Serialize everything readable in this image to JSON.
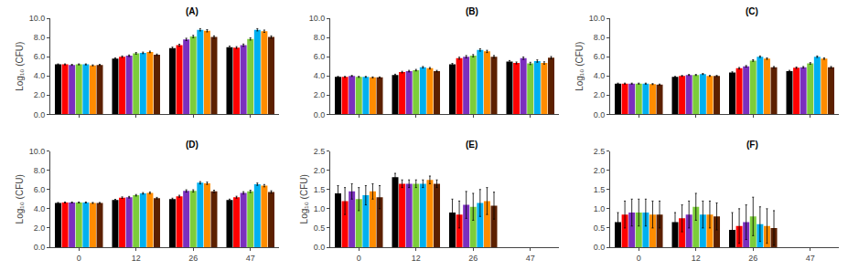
{
  "chart_data": [
    {
      "type": "bar",
      "title": "(A)",
      "ylabel": "Log₁₀ (CFU)",
      "categories": [
        0,
        12,
        26,
        47
      ],
      "series": [
        {
          "color": "#000000",
          "values": [
            5.2,
            5.8,
            6.9,
            7.0
          ],
          "errors": [
            0.05,
            0.08,
            0.1,
            0.1
          ]
        },
        {
          "color": "#ff0000",
          "values": [
            5.2,
            6.0,
            7.2,
            6.95
          ],
          "errors": [
            0.05,
            0.08,
            0.1,
            0.1
          ]
        },
        {
          "color": "#7b2fbe",
          "values": [
            5.15,
            6.1,
            7.8,
            7.2
          ],
          "errors": [
            0.05,
            0.08,
            0.12,
            0.12
          ]
        },
        {
          "color": "#7ccd3a",
          "values": [
            5.2,
            6.35,
            8.1,
            7.85
          ],
          "errors": [
            0.05,
            0.08,
            0.12,
            0.12
          ]
        },
        {
          "color": "#00b0f0",
          "values": [
            5.2,
            6.4,
            8.8,
            8.8
          ],
          "errors": [
            0.05,
            0.08,
            0.12,
            0.12
          ]
        },
        {
          "color": "#ff8c00",
          "values": [
            5.1,
            6.5,
            8.7,
            8.65
          ],
          "errors": [
            0.05,
            0.08,
            0.12,
            0.12
          ]
        },
        {
          "color": "#5c2000",
          "values": [
            5.15,
            6.2,
            8.05,
            8.05
          ],
          "errors": [
            0.05,
            0.08,
            0.12,
            0.12
          ]
        }
      ],
      "ylim": [
        0.0,
        10.0
      ],
      "yticks": [
        {
          "value": 0.0,
          "label": "0.0"
        },
        {
          "value": 2.0,
          "label": "2.0"
        },
        {
          "value": 4.0,
          "label": "4.0"
        },
        {
          "value": 6.0,
          "label": "6.0"
        },
        {
          "value": 8.0,
          "label": "8.0"
        },
        {
          "value": 10.0,
          "label": "10.0"
        }
      ],
      "grid": false,
      "tick_labels": "y"
    },
    {
      "type": "bar",
      "title": "(B)",
      "categories": [
        0,
        12,
        26,
        47
      ],
      "series": [
        {
          "color": "#000000",
          "values": [
            3.9,
            4.1,
            5.2,
            5.5
          ],
          "errors": [
            0.05,
            0.08,
            0.1,
            0.1
          ]
        },
        {
          "color": "#ff0000",
          "values": [
            3.9,
            4.4,
            5.85,
            5.35
          ],
          "errors": [
            0.05,
            0.08,
            0.1,
            0.1
          ]
        },
        {
          "color": "#7b2fbe",
          "values": [
            4.0,
            4.5,
            6.0,
            5.85
          ],
          "errors": [
            0.05,
            0.08,
            0.12,
            0.12
          ]
        },
        {
          "color": "#7ccd3a",
          "values": [
            3.9,
            4.6,
            6.1,
            5.3
          ],
          "errors": [
            0.05,
            0.08,
            0.12,
            0.12
          ]
        },
        {
          "color": "#00b0f0",
          "values": [
            3.9,
            4.9,
            6.7,
            5.55
          ],
          "errors": [
            0.05,
            0.08,
            0.12,
            0.12
          ]
        },
        {
          "color": "#ff8c00",
          "values": [
            3.85,
            4.8,
            6.55,
            5.35
          ],
          "errors": [
            0.05,
            0.08,
            0.12,
            0.12
          ]
        },
        {
          "color": "#5c2000",
          "values": [
            3.85,
            4.5,
            6.0,
            5.9
          ],
          "errors": [
            0.05,
            0.08,
            0.12,
            0.12
          ]
        }
      ],
      "ylim": [
        0.0,
        10.0
      ],
      "yticks": [
        {
          "value": 0.0,
          "label": "0.0"
        },
        {
          "value": 2.0,
          "label": "2.0"
        },
        {
          "value": 4.0,
          "label": "4.0"
        },
        {
          "value": 6.0,
          "label": "6.0"
        },
        {
          "value": 8.0,
          "label": "8.0"
        },
        {
          "value": 10.0,
          "label": "10.0"
        }
      ],
      "grid": false,
      "tick_labels": "y"
    },
    {
      "type": "bar",
      "title": "(C)",
      "ylabel": "Log₁₀ (CFU)",
      "categories": [
        0,
        12,
        26,
        47
      ],
      "series": [
        {
          "color": "#000000",
          "values": [
            3.2,
            3.9,
            4.35,
            4.5
          ],
          "errors": [
            0.05,
            0.05,
            0.08,
            0.08
          ]
        },
        {
          "color": "#ff0000",
          "values": [
            3.2,
            4.0,
            4.8,
            4.85
          ],
          "errors": [
            0.05,
            0.05,
            0.08,
            0.08
          ]
        },
        {
          "color": "#7b2fbe",
          "values": [
            3.2,
            4.1,
            5.0,
            4.9
          ],
          "errors": [
            0.05,
            0.05,
            0.08,
            0.08
          ]
        },
        {
          "color": "#7ccd3a",
          "values": [
            3.2,
            4.1,
            5.6,
            5.3
          ],
          "errors": [
            0.05,
            0.05,
            0.08,
            0.08
          ]
        },
        {
          "color": "#00b0f0",
          "values": [
            3.2,
            4.2,
            6.0,
            6.0
          ],
          "errors": [
            0.05,
            0.05,
            0.08,
            0.08
          ]
        },
        {
          "color": "#ff8c00",
          "values": [
            3.15,
            4.0,
            5.8,
            5.8
          ],
          "errors": [
            0.05,
            0.05,
            0.08,
            0.08
          ]
        },
        {
          "color": "#5c2000",
          "values": [
            3.1,
            4.0,
            4.9,
            4.9
          ],
          "errors": [
            0.05,
            0.05,
            0.08,
            0.08
          ]
        }
      ],
      "ylim": [
        0.0,
        10.0
      ],
      "yticks": [
        {
          "value": 0.0,
          "label": "0.0"
        },
        {
          "value": 2.0,
          "label": "2.0"
        },
        {
          "value": 4.0,
          "label": "4.0"
        },
        {
          "value": 6.0,
          "label": "6.0"
        },
        {
          "value": 8.0,
          "label": "8.0"
        },
        {
          "value": 10.0,
          "label": "10.0"
        }
      ],
      "grid": false,
      "tick_labels": "y"
    },
    {
      "type": "bar",
      "title": "(D)",
      "ylabel": "Log₁₀ (CFU)",
      "categories": [
        0,
        12,
        26,
        47
      ],
      "series": [
        {
          "color": "#000000",
          "values": [
            4.6,
            4.9,
            5.0,
            4.9
          ],
          "errors": [
            0.05,
            0.08,
            0.1,
            0.1
          ]
        },
        {
          "color": "#ff0000",
          "values": [
            4.65,
            5.15,
            5.3,
            5.2
          ],
          "errors": [
            0.05,
            0.08,
            0.1,
            0.1
          ]
        },
        {
          "color": "#7b2fbe",
          "values": [
            4.65,
            5.2,
            5.85,
            5.65
          ],
          "errors": [
            0.05,
            0.08,
            0.12,
            0.12
          ]
        },
        {
          "color": "#7ccd3a",
          "values": [
            4.65,
            5.4,
            5.85,
            5.8
          ],
          "errors": [
            0.05,
            0.08,
            0.12,
            0.12
          ]
        },
        {
          "color": "#00b0f0",
          "values": [
            4.65,
            5.6,
            6.7,
            6.55
          ],
          "errors": [
            0.05,
            0.08,
            0.12,
            0.12
          ]
        },
        {
          "color": "#ff8c00",
          "values": [
            4.6,
            5.65,
            6.65,
            6.4
          ],
          "errors": [
            0.05,
            0.08,
            0.12,
            0.12
          ]
        },
        {
          "color": "#5c2000",
          "values": [
            4.6,
            5.1,
            5.8,
            5.75
          ],
          "errors": [
            0.05,
            0.08,
            0.12,
            0.12
          ]
        }
      ],
      "ylim": [
        0.0,
        10.0
      ],
      "yticks": [
        {
          "value": 0.0,
          "label": "0.0"
        },
        {
          "value": 2.0,
          "label": "2.0"
        },
        {
          "value": 4.0,
          "label": "4.0"
        },
        {
          "value": 6.0,
          "label": "6.0"
        },
        {
          "value": 8.0,
          "label": "8.0"
        },
        {
          "value": 10.0,
          "label": "10.0"
        }
      ],
      "grid": false
    },
    {
      "type": "bar",
      "title": "(E)",
      "ylabel": "Log₁₀ (CFU)",
      "categories": [
        0,
        12,
        26,
        47
      ],
      "series": [
        {
          "color": "#000000",
          "values": [
            1.4,
            1.82,
            0.9,
            0.0
          ],
          "errors": [
            0.2,
            0.1,
            0.35,
            0.0
          ]
        },
        {
          "color": "#ff0000",
          "values": [
            1.2,
            1.65,
            0.85,
            0.0
          ],
          "errors": [
            0.35,
            0.1,
            0.35,
            0.0
          ]
        },
        {
          "color": "#7b2fbe",
          "values": [
            1.45,
            1.65,
            1.1,
            0.0
          ],
          "errors": [
            0.2,
            0.1,
            0.35,
            0.0
          ]
        },
        {
          "color": "#7ccd3a",
          "values": [
            1.25,
            1.65,
            1.05,
            0.0
          ],
          "errors": [
            0.3,
            0.1,
            0.35,
            0.0
          ]
        },
        {
          "color": "#00b0f0",
          "values": [
            1.35,
            1.65,
            1.15,
            0.0
          ],
          "errors": [
            0.25,
            0.1,
            0.35,
            0.0
          ]
        },
        {
          "color": "#ff8c00",
          "values": [
            1.45,
            1.75,
            1.2,
            0.0
          ],
          "errors": [
            0.2,
            0.1,
            0.35,
            0.0
          ]
        },
        {
          "color": "#5c2000",
          "values": [
            1.3,
            1.65,
            1.08,
            0.0
          ],
          "errors": [
            0.3,
            0.1,
            0.35,
            0.0
          ]
        }
      ],
      "ylim": [
        0.0,
        2.5
      ],
      "yticks": [
        {
          "value": 0.0,
          "label": "0.0"
        },
        {
          "value": 0.5,
          "label": "0.5"
        },
        {
          "value": 1.0,
          "label": "1.0"
        },
        {
          "value": 1.5,
          "label": "1.5"
        },
        {
          "value": 2.0,
          "label": "2.0"
        },
        {
          "value": 2.5,
          "label": "2.5"
        }
      ],
      "grid": false
    },
    {
      "type": "bar",
      "title": "(F)",
      "categories": [
        0,
        12,
        26,
        47
      ],
      "series": [
        {
          "color": "#000000",
          "values": [
            0.65,
            0.65,
            0.45,
            0.0
          ],
          "errors": [
            0.25,
            0.25,
            0.45,
            0.0
          ]
        },
        {
          "color": "#ff0000",
          "values": [
            0.85,
            0.75,
            0.55,
            0.0
          ],
          "errors": [
            0.35,
            0.35,
            0.45,
            0.0
          ]
        },
        {
          "color": "#7b2fbe",
          "values": [
            0.9,
            0.85,
            0.65,
            0.0
          ],
          "errors": [
            0.35,
            0.35,
            0.45,
            0.0
          ]
        },
        {
          "color": "#7ccd3a",
          "values": [
            0.9,
            1.05,
            0.8,
            0.0
          ],
          "errors": [
            0.35,
            0.35,
            0.5,
            0.0
          ]
        },
        {
          "color": "#00b0f0",
          "values": [
            0.9,
            0.85,
            0.6,
            0.0
          ],
          "errors": [
            0.35,
            0.35,
            0.45,
            0.0
          ]
        },
        {
          "color": "#ff8c00",
          "values": [
            0.85,
            0.85,
            0.55,
            0.0
          ],
          "errors": [
            0.35,
            0.35,
            0.45,
            0.0
          ]
        },
        {
          "color": "#5c2000",
          "values": [
            0.85,
            0.8,
            0.5,
            0.0
          ],
          "errors": [
            0.35,
            0.35,
            0.45,
            0.0
          ]
        }
      ],
      "ylim": [
        0.0,
        2.5
      ],
      "yticks": [
        {
          "value": 0.0,
          "label": "0.0"
        },
        {
          "value": 0.5,
          "label": "0.5"
        },
        {
          "value": 1.0,
          "label": "1.0"
        },
        {
          "value": 1.5,
          "label": "1.5"
        },
        {
          "value": 2.0,
          "label": "2.0"
        },
        {
          "value": 2.5,
          "label": "2.5"
        }
      ],
      "grid": false
    }
  ]
}
